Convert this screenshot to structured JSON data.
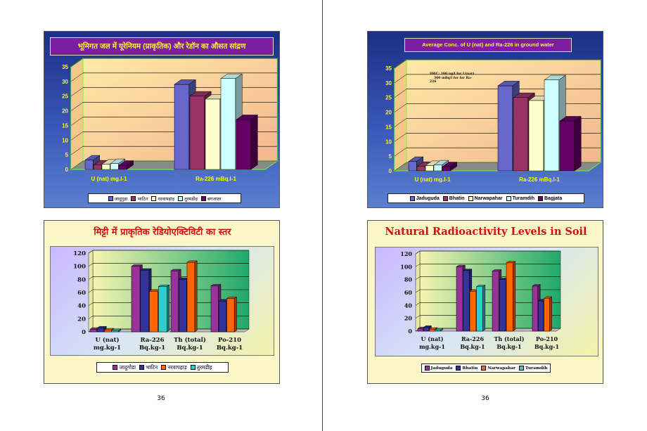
{
  "pages": [
    {
      "page_number": "36"
    },
    {
      "page_number": "36"
    }
  ],
  "slides": {
    "water_hi": {
      "title": "भूमिगत जल में यूरेनियम (प्राकृतिक) और रेडॉन का औसत सांद्रण"
    },
    "water_en": {
      "title": "Average Conc.  of U (nat) and Ra-226 in ground water",
      "note_lines": [
        "DWC: 100 ug/l for U(nat)",
        "300 mBq/l for for Ra-",
        "226"
      ]
    },
    "soil_hi": {
      "title": "मिट्टी में प्राकृतिक रेडियोएक्टिविटी का स्तर"
    },
    "soil_en": {
      "title": "Natural Radioactivity Levels in Soil"
    }
  },
  "chart_data": [
    {
      "id": "water_hi",
      "type": "bar",
      "categories": [
        "U (nat) mg.l-1",
        "Ra-226 mBq.l-1"
      ],
      "series": [
        {
          "name": "जादुगुड़ा",
          "values": [
            3.2,
            29
          ],
          "color": "#6666cc"
        },
        {
          "name": "भाटिन",
          "values": [
            1.5,
            25
          ],
          "color": "#993366"
        },
        {
          "name": "नरवापहाड़",
          "values": [
            1.8,
            24
          ],
          "color": "#ffffcc"
        },
        {
          "name": "तुरमडीह",
          "values": [
            2.0,
            31
          ],
          "color": "#ccffff"
        },
        {
          "name": "बगजाता",
          "values": [
            1.4,
            17
          ],
          "color": "#660066"
        }
      ],
      "yticks": [
        "0",
        "5",
        "10",
        "15",
        "20",
        "25",
        "30",
        "35"
      ],
      "ylim": [
        0,
        35
      ],
      "legend": "bottom"
    },
    {
      "id": "water_en",
      "type": "bar",
      "categories": [
        "U (nat) mg.l-1",
        "Ra-226 mBq.l-1"
      ],
      "series": [
        {
          "name": "Jaduguda",
          "values": [
            3.2,
            29
          ],
          "color": "#6666cc"
        },
        {
          "name": "Bhatin",
          "values": [
            1.5,
            25
          ],
          "color": "#993366"
        },
        {
          "name": "Narwapahar",
          "values": [
            1.8,
            24
          ],
          "color": "#ffffcc"
        },
        {
          "name": "Turamdih",
          "values": [
            2.0,
            31
          ],
          "color": "#ccffff"
        },
        {
          "name": "Bagjata",
          "values": [
            1.4,
            17
          ],
          "color": "#660066"
        }
      ],
      "yticks": [
        "0",
        "5",
        "10",
        "15",
        "20",
        "25",
        "30",
        "35"
      ],
      "ylim": [
        0,
        35
      ],
      "legend": "bottom"
    },
    {
      "id": "soil_hi",
      "type": "bar",
      "categories": [
        [
          "U (nat)",
          "mg.kg-1"
        ],
        [
          "Ra-226",
          "Bq.kg-1"
        ],
        [
          "Th (total)",
          "Bq.kg-1"
        ],
        [
          "Po-210",
          "Bq.kg-1"
        ]
      ],
      "series": [
        {
          "name": "जादुगोडा",
          "values": [
            4,
            100,
            93,
            70
          ],
          "color": "#993399"
        },
        {
          "name": "भाटिन",
          "values": [
            6,
            94,
            80,
            47
          ],
          "color": "#333399"
        },
        {
          "name": "नरवापहाड़",
          "values": [
            3,
            62,
            106,
            51
          ],
          "color": "#ff6600"
        },
        {
          "name": "तुरमडीह",
          "values": [
            2,
            69,
            null,
            null
          ],
          "color": "#33cccc"
        }
      ],
      "yticks": [
        "0",
        "20",
        "40",
        "60",
        "80",
        "100",
        "120"
      ],
      "ylim": [
        0,
        120
      ],
      "legend": "bottom"
    },
    {
      "id": "soil_en",
      "type": "bar",
      "categories": [
        [
          "U (nat)",
          "mg.kg-1"
        ],
        [
          "Ra-226",
          "Bq.kg-1"
        ],
        [
          "Th (total)",
          "Bq.kg-1"
        ],
        [
          "Po-210",
          "Bq.kg-1"
        ]
      ],
      "series": [
        {
          "name": "Jaduguda",
          "values": [
            4,
            100,
            93,
            70
          ],
          "color": "#993399"
        },
        {
          "name": "Bhatin",
          "values": [
            6,
            94,
            80,
            47
          ],
          "color": "#333399"
        },
        {
          "name": "Narwapahar",
          "values": [
            3,
            62,
            106,
            51
          ],
          "color": "#ff6600"
        },
        {
          "name": "Turamdih",
          "values": [
            2,
            69,
            null,
            null
          ],
          "color": "#33cccc"
        }
      ],
      "yticks": [
        "0",
        "20",
        "40",
        "60",
        "80",
        "100",
        "120"
      ],
      "ylim": [
        0,
        120
      ],
      "legend": "bottom"
    }
  ]
}
